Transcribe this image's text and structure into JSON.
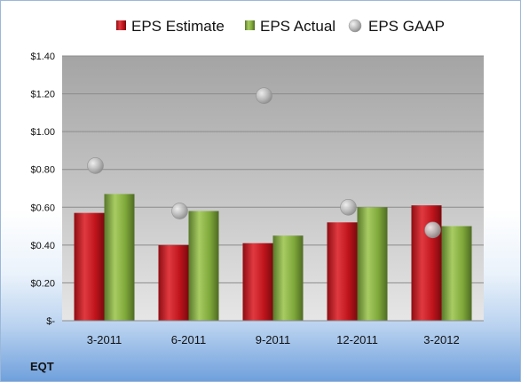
{
  "chart_data": {
    "type": "bar",
    "categories": [
      "3-2011",
      "6-2011",
      "9-2011",
      "12-2011",
      "3-2012"
    ],
    "series": [
      {
        "name": "EPS Estimate",
        "kind": "bar",
        "color": "#c0141c",
        "values": [
          0.57,
          0.4,
          0.41,
          0.52,
          0.61
        ]
      },
      {
        "name": "EPS Actual",
        "kind": "bar",
        "color": "#7fa83a",
        "values": [
          0.67,
          0.58,
          0.45,
          0.6,
          0.5
        ]
      },
      {
        "name": "EPS GAAP",
        "kind": "scatter",
        "color": "#b8b8b8",
        "values": [
          0.82,
          0.58,
          1.19,
          0.6,
          0.48
        ]
      }
    ],
    "yticks": [
      "$-",
      "$0.20",
      "$0.40",
      "$0.60",
      "$0.80",
      "$1.00",
      "$1.20",
      "$1.40"
    ],
    "ylim": [
      0,
      1.4
    ],
    "grid": true,
    "legend_position": "top",
    "footer_label": "EQT"
  }
}
